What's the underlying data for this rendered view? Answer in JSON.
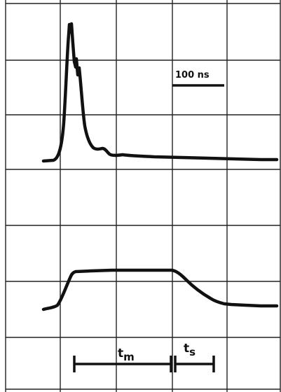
{
  "scale_label": "100 ns",
  "markers": {
    "tm": {
      "main": "t",
      "sub": "m"
    },
    "ts": {
      "main": "t",
      "sub": "s"
    }
  },
  "colors": {
    "background": "#ffffff",
    "grid": "#222222",
    "trace": "#111111"
  },
  "grid": {
    "columns": 5,
    "rows": 7
  }
}
